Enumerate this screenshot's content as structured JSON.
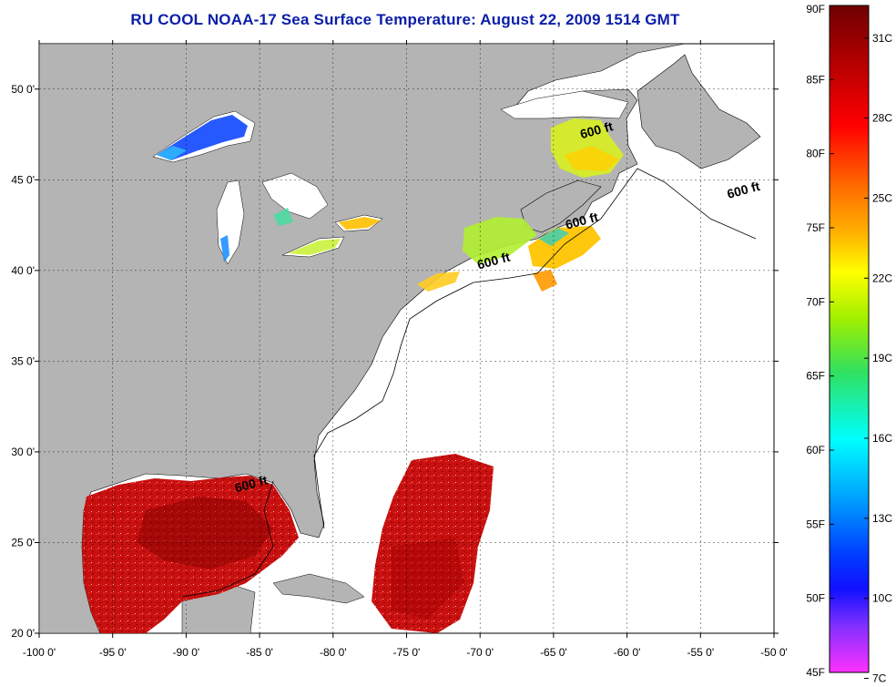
{
  "title": "RU COOL  NOAA-17  Sea Surface Temperature:  August 22, 2009 1514 GMT",
  "map": {
    "lon_range": [
      -100,
      -50
    ],
    "lat_range": [
      20,
      52.5
    ],
    "lon_ticks": [
      "-100 0'",
      "-95 0'",
      "-90 0'",
      "-85 0'",
      "-80 0'",
      "-75 0'",
      "-70 0'",
      "-65 0'",
      "-60 0'",
      "-55 0'",
      "-50 0'"
    ],
    "lat_ticks": [
      "50 0'",
      "45 0'",
      "40 0'",
      "35 0'",
      "30 0'",
      "25 0'",
      "20 0'"
    ],
    "land_color": "#b4b4b4",
    "ocean_nodata_color": "#ffffff",
    "contour_labels": [
      {
        "text": "600 ft",
        "lon": -62.0,
        "lat": 47.5
      },
      {
        "text": "600 ft",
        "lon": -52.0,
        "lat": 44.2
      },
      {
        "text": "600 ft",
        "lon": -63.0,
        "lat": 42.5
      },
      {
        "text": "600 ft",
        "lon": -69.0,
        "lat": 40.3
      },
      {
        "text": "600 ft",
        "lon": -85.5,
        "lat": 28.0
      }
    ]
  },
  "colorbar": {
    "left_labels": [
      "90F",
      "85F",
      "80F",
      "75F",
      "70F",
      "65F",
      "60F",
      "55F",
      "50F",
      "45F"
    ],
    "right_labels": [
      "31C",
      "28C",
      "25C",
      "22C",
      "19C",
      "16C",
      "13C",
      "10C",
      "7C"
    ],
    "colors": [
      "#7a0000",
      "#b00000",
      "#ff0000",
      "#ff6a00",
      "#ffb000",
      "#ffff00",
      "#a0f000",
      "#30e060",
      "#00ffff",
      "#00a0ff",
      "#0040ff",
      "#1010ff",
      "#8030ff",
      "#ff30ff"
    ]
  }
}
